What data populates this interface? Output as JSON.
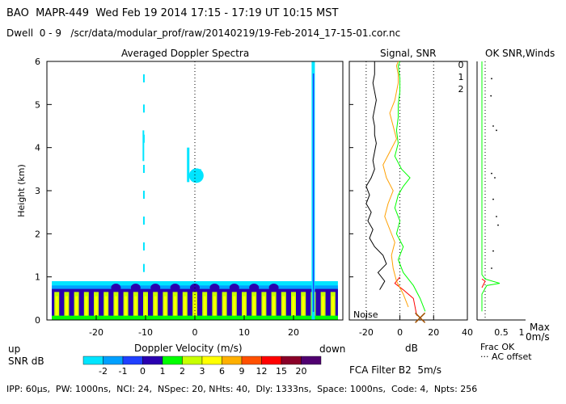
{
  "header": {
    "line1": "BAO  MAPR-449  Wed Feb 19 2014 17:15 - 17:19 UT 10:15 MST",
    "line2": "Dwell  0 - 9   /scr/data/modular_prof/raw/20140219/19-Feb-2014_17-15-01.cor.nc"
  },
  "footer": {
    "ipp_line": "IPP: 60μs,  PW: 1000ns,  NCI: 24,  NSpec: 20, NHts: 40,  Dly: 1333ns,  Space: 1000ns,  Code: 4,  Npts: 256",
    "filter_line": "FCA Filter B2  5m/s"
  },
  "colorbar": {
    "label_up": "up",
    "label_snr": "SNR dB",
    "label_down": "down",
    "ticks": [
      "-2",
      "-1",
      "0",
      "1",
      "2",
      "3",
      "6",
      "9",
      "12",
      "15",
      "20"
    ],
    "colors": [
      "#00e5ff",
      "#00a0ff",
      "#2040ff",
      "#2a00b0",
      "#00ff00",
      "#c8ff00",
      "#ffff00",
      "#ffb000",
      "#ff5000",
      "#ff0000",
      "#8a0028",
      "#500070"
    ]
  },
  "chart_data": [
    {
      "type": "heatmap",
      "title": "Averaged Doppler Spectra",
      "xlabel": "Doppler Velocity (m/s)",
      "ylabel": "Height (km)",
      "xlim": [
        -30,
        30
      ],
      "ylim": [
        0,
        6
      ],
      "xticks": [
        "-20",
        "-10",
        "0",
        "10",
        "20"
      ],
      "yticks": [
        "0",
        "1",
        "2",
        "3",
        "4",
        "5",
        "6"
      ],
      "zero_line": 0,
      "features": [
        {
          "name": "strong echo layer",
          "height_km": [
            0.1,
            0.9
          ],
          "velocity_ms": [
            -29,
            29
          ],
          "snr_db_max": 20
        },
        {
          "name": "cloud echo",
          "height_km": [
            3.1,
            3.6
          ],
          "velocity_ms": [
            -2,
            2
          ],
          "snr_db": -2
        },
        {
          "name": "spectral spike",
          "velocity_ms": 24,
          "height_km": [
            0,
            6
          ],
          "snr_db": -1
        }
      ]
    },
    {
      "type": "line",
      "title": "Signal, SNR",
      "xlabel": "dB",
      "xlim": [
        -30,
        40
      ],
      "ylim": [
        0,
        6
      ],
      "xticks": [
        "-20",
        "0",
        "20",
        "40"
      ],
      "noise_label": "Noise",
      "series": [
        {
          "name": "signal",
          "color": "#000000",
          "x": [
            -12,
            -9,
            -13,
            -8,
            -10,
            -15,
            -18,
            -16,
            -19,
            -17,
            -20,
            -18,
            -20,
            -17,
            -15,
            -16,
            -15,
            -14,
            -15,
            -15,
            -16,
            -15,
            -14,
            -15,
            -16,
            -15,
            -15,
            -15,
            -15
          ],
          "y": [
            0.7,
            0.9,
            1.1,
            1.3,
            1.5,
            1.7,
            1.9,
            2.1,
            2.3,
            2.5,
            2.7,
            2.9,
            3.1,
            3.3,
            3.5,
            3.7,
            3.9,
            4.1,
            4.3,
            4.5,
            4.7,
            4.9,
            5.1,
            5.3,
            5.5,
            5.7,
            5.9,
            6.0,
            6.0
          ]
        },
        {
          "name": "snr-0",
          "color": "#ff0000",
          "x": [
            10,
            8,
            2,
            -3,
            0
          ],
          "y": [
            0.1,
            0.5,
            0.7,
            0.85,
            1.0
          ]
        },
        {
          "name": "snr-1",
          "color": "#ffa000",
          "x": [
            5,
            2,
            -2,
            -4,
            -5,
            -3,
            -6,
            -9,
            -7,
            -4,
            -8,
            -10,
            -6,
            -2,
            -4,
            -6,
            -3,
            -2,
            -1,
            -1,
            -2,
            -1,
            -1,
            -1,
            -1,
            -1,
            -1,
            -1
          ],
          "y": [
            0.3,
            0.6,
            0.9,
            1.2,
            1.5,
            1.8,
            2.1,
            2.4,
            2.7,
            3.0,
            3.3,
            3.6,
            3.9,
            4.2,
            4.5,
            4.8,
            5.1,
            5.3,
            5.5,
            5.7,
            5.9,
            6.0,
            6.0,
            6.0,
            6.0,
            6.0,
            6.0,
            6.0
          ]
        },
        {
          "name": "snr-2",
          "color": "#00ff00",
          "x": [
            15,
            12,
            8,
            2,
            -1,
            2,
            -2,
            0,
            -3,
            -1,
            2,
            6,
            1,
            -3,
            -1,
            -2,
            -1,
            -1,
            0,
            0,
            -1,
            0,
            0,
            0,
            0,
            0
          ],
          "y": [
            0.2,
            0.5,
            0.8,
            1.1,
            1.4,
            1.7,
            2.0,
            2.3,
            2.6,
            2.9,
            3.1,
            3.3,
            3.5,
            3.8,
            4.1,
            4.4,
            4.7,
            5.0,
            5.3,
            5.6,
            5.9,
            6.0,
            6.0,
            6.0,
            6.0,
            6.0
          ]
        }
      ],
      "markers": [
        {
          "name": "x-marker",
          "x": 12,
          "y": 0.05,
          "color": "#a05000"
        }
      ]
    },
    {
      "type": "scatter",
      "title": "OK SNR,Winds",
      "legend": [
        "0",
        "1",
        "2"
      ],
      "legend_colors": [
        "#ff0000",
        "#ffa000",
        "#00ff00"
      ],
      "xlabel_lines": [
        "Max",
        "0m/s"
      ],
      "xticks": [
        "0.5",
        "1"
      ],
      "frac_ok_label": "Frac OK",
      "ac_offset_label": "··· AC offset",
      "frac_ok_line": [
        {
          "x": 0.0,
          "y": 0.2
        },
        {
          "x": 0.0,
          "y": 0.6
        },
        {
          "x": 0.15,
          "y": 0.8
        },
        {
          "x": 0.55,
          "y": 0.85
        },
        {
          "x": 0.1,
          "y": 0.95
        },
        {
          "x": 0.0,
          "y": 1.05
        },
        {
          "x": 0.0,
          "y": 6.0
        }
      ],
      "wind_points": [
        {
          "x": 0.3,
          "y": 5.6
        },
        {
          "x": 0.28,
          "y": 5.2
        },
        {
          "x": 0.35,
          "y": 4.5
        },
        {
          "x": 0.45,
          "y": 4.4
        },
        {
          "x": 0.3,
          "y": 3.4
        },
        {
          "x": 0.4,
          "y": 3.3
        },
        {
          "x": 0.35,
          "y": 2.8
        },
        {
          "x": 0.45,
          "y": 2.4
        },
        {
          "x": 0.5,
          "y": 2.2
        },
        {
          "x": 0.35,
          "y": 1.6
        },
        {
          "x": 0.3,
          "y": 1.2
        }
      ]
    }
  ]
}
